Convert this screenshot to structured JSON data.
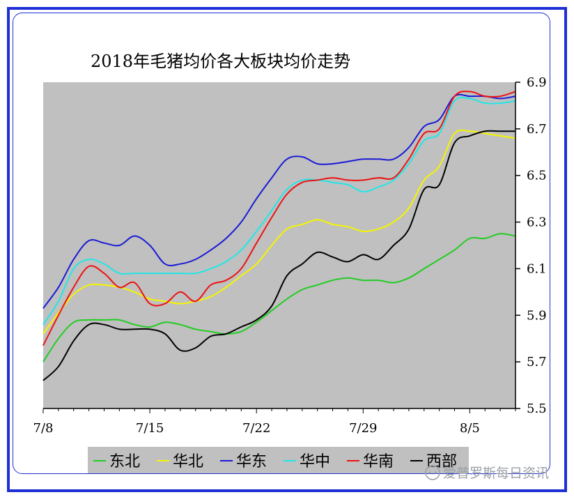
{
  "chart_data": {
    "type": "line",
    "title": "2018年毛猪均价各大板块均价走势",
    "xlabel": "",
    "ylabel": "",
    "x_ticks": [
      "7/8",
      "7/15",
      "7/22",
      "7/29",
      "8/5"
    ],
    "x_tick_index": [
      0,
      7,
      14,
      21,
      28
    ],
    "x_count": 32,
    "y_ticks": [
      "6.9",
      "6.7",
      "6.5",
      "6.3",
      "6.1",
      "5.9",
      "5.7",
      "5.5"
    ],
    "y_tick_values": [
      6.9,
      6.7,
      6.5,
      6.3,
      6.1,
      5.9,
      5.7,
      5.5
    ],
    "ylim": [
      5.5,
      6.9
    ],
    "y_axis_side": "right",
    "grid": false,
    "legend_position": "bottom",
    "series": [
      {
        "name": "东北",
        "color": "#22cc22",
        "values": [
          5.7,
          5.8,
          5.87,
          5.88,
          5.88,
          5.88,
          5.86,
          5.85,
          5.87,
          5.86,
          5.84,
          5.83,
          5.82,
          5.83,
          5.87,
          5.92,
          5.97,
          6.01,
          6.03,
          6.05,
          6.06,
          6.05,
          6.05,
          6.04,
          6.06,
          6.1,
          6.14,
          6.18,
          6.23,
          6.23,
          6.25,
          6.24
        ]
      },
      {
        "name": "华北",
        "color": "#f5f500",
        "values": [
          5.82,
          5.91,
          5.99,
          6.03,
          6.03,
          6.02,
          6.0,
          5.97,
          5.96,
          5.95,
          5.96,
          5.98,
          6.02,
          6.07,
          6.12,
          6.2,
          6.27,
          6.29,
          6.31,
          6.29,
          6.28,
          6.26,
          6.27,
          6.3,
          6.36,
          6.48,
          6.54,
          6.68,
          6.69,
          6.68,
          6.67,
          6.66
        ]
      },
      {
        "name": "华东",
        "color": "#1a1ad6",
        "values": [
          5.93,
          6.02,
          6.14,
          6.22,
          6.21,
          6.2,
          6.24,
          6.2,
          6.12,
          6.12,
          6.14,
          6.18,
          6.23,
          6.3,
          6.4,
          6.49,
          6.57,
          6.58,
          6.55,
          6.55,
          6.56,
          6.57,
          6.57,
          6.57,
          6.62,
          6.71,
          6.74,
          6.84,
          6.84,
          6.84,
          6.83,
          6.84
        ]
      },
      {
        "name": "华中",
        "color": "#22e6e6",
        "values": [
          5.86,
          5.96,
          6.1,
          6.14,
          6.12,
          6.08,
          6.08,
          6.08,
          6.08,
          6.08,
          6.08,
          6.1,
          6.13,
          6.18,
          6.26,
          6.35,
          6.44,
          6.48,
          6.48,
          6.47,
          6.46,
          6.43,
          6.45,
          6.48,
          6.55,
          6.65,
          6.68,
          6.82,
          6.83,
          6.81,
          6.81,
          6.82
        ]
      },
      {
        "name": "华南",
        "color": "#ee1111",
        "values": [
          5.77,
          5.9,
          6.02,
          6.11,
          6.08,
          6.02,
          6.04,
          5.95,
          5.95,
          6.0,
          5.96,
          6.03,
          6.05,
          6.1,
          6.21,
          6.32,
          6.42,
          6.47,
          6.48,
          6.49,
          6.48,
          6.48,
          6.49,
          6.49,
          6.57,
          6.68,
          6.7,
          6.84,
          6.86,
          6.84,
          6.84,
          6.86
        ]
      },
      {
        "name": "西部",
        "color": "#000000",
        "values": [
          5.62,
          5.68,
          5.79,
          5.86,
          5.86,
          5.84,
          5.84,
          5.84,
          5.82,
          5.75,
          5.76,
          5.81,
          5.82,
          5.85,
          5.88,
          5.94,
          6.07,
          6.12,
          6.17,
          6.15,
          6.13,
          6.16,
          6.14,
          6.2,
          6.27,
          6.44,
          6.46,
          6.64,
          6.67,
          6.69,
          6.69,
          6.69
        ]
      }
    ]
  },
  "watermark": "爱普罗斯每日资讯",
  "colors": {
    "frame": "#1f2fd6",
    "plot_bg": "#c0c0c0",
    "legend_bg": "#c0c0c0"
  }
}
